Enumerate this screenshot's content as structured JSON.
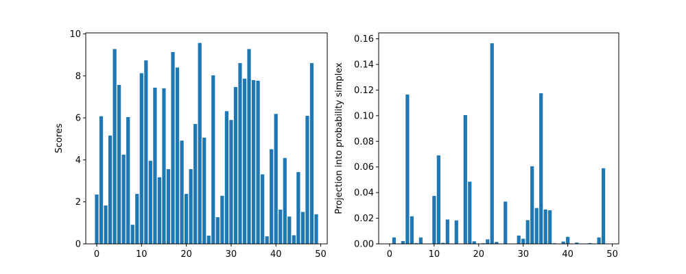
{
  "figure": {
    "background": "#ffffff",
    "bar_color": "#1f77b4"
  },
  "chart_data": [
    {
      "type": "bar",
      "title": "",
      "xlabel": "",
      "ylabel": "Scores",
      "xlim": [
        -2.45,
        51.45
      ],
      "ylim": [
        0,
        10.05
      ],
      "xticks": [
        0,
        10,
        20,
        30,
        40,
        50
      ],
      "xtick_labels": [
        "0",
        "10",
        "20",
        "30",
        "40",
        "50"
      ],
      "yticks": [
        0,
        2,
        4,
        6,
        8,
        10
      ],
      "ytick_labels": [
        "0",
        "2",
        "4",
        "6",
        "8",
        "10"
      ],
      "grid": false,
      "x": [
        0,
        1,
        2,
        3,
        4,
        5,
        6,
        7,
        8,
        9,
        10,
        11,
        12,
        13,
        14,
        15,
        16,
        17,
        18,
        19,
        20,
        21,
        22,
        23,
        24,
        25,
        26,
        27,
        28,
        29,
        30,
        31,
        32,
        33,
        34,
        35,
        36,
        37,
        38,
        39,
        40,
        41,
        42,
        43,
        44,
        45,
        46,
        47,
        48,
        49
      ],
      "values": [
        2.35,
        6.08,
        1.83,
        5.16,
        9.28,
        7.57,
        4.25,
        6.04,
        0.91,
        2.38,
        8.13,
        8.74,
        3.96,
        7.44,
        3.17,
        7.41,
        3.56,
        9.14,
        8.4,
        4.92,
        2.38,
        3.56,
        5.71,
        9.57,
        5.06,
        0.39,
        8.03,
        1.27,
        2.29,
        6.32,
        5.9,
        7.47,
        8.61,
        7.87,
        9.28,
        7.8,
        7.77,
        3.31,
        0.36,
        4.51,
        6.19,
        1.63,
        4.09,
        1.3,
        0.41,
        3.42,
        1.52,
        6.1,
        8.61,
        1.41
      ]
    },
    {
      "type": "bar",
      "title": "",
      "xlabel": "",
      "ylabel": "Projection into probability simplex",
      "xlim": [
        -2.45,
        51.45
      ],
      "ylim": [
        0,
        0.1646
      ],
      "xticks": [
        0,
        10,
        20,
        30,
        40,
        50
      ],
      "xtick_labels": [
        "0",
        "10",
        "20",
        "30",
        "40",
        "50"
      ],
      "yticks": [
        0,
        0.02,
        0.04,
        0.06,
        0.08,
        0.1,
        0.12,
        0.14,
        0.16
      ],
      "ytick_labels": [
        "0.00",
        "0.02",
        "0.04",
        "0.06",
        "0.08",
        "0.10",
        "0.12",
        "0.14",
        "0.16"
      ],
      "grid": false,
      "x": [
        0,
        1,
        2,
        3,
        4,
        5,
        6,
        7,
        8,
        9,
        10,
        11,
        12,
        13,
        14,
        15,
        16,
        17,
        18,
        19,
        20,
        21,
        22,
        23,
        24,
        25,
        26,
        27,
        28,
        29,
        30,
        31,
        32,
        33,
        34,
        35,
        36,
        37,
        38,
        39,
        40,
        41,
        42,
        43,
        44,
        45,
        46,
        47,
        48,
        49
      ],
      "values": [
        0.0,
        0.005,
        0.0,
        0.0022,
        0.1165,
        0.0215,
        0.0006,
        0.005,
        0.0,
        0.0,
        0.0374,
        0.069,
        0.0008,
        0.019,
        0.0,
        0.0183,
        0.0,
        0.1005,
        0.0485,
        0.002,
        0.0,
        0.0005,
        0.0035,
        0.1565,
        0.0015,
        0.0,
        0.033,
        0.0,
        0.0,
        0.0065,
        0.004,
        0.0185,
        0.0605,
        0.028,
        0.1175,
        0.0268,
        0.0262,
        0.0005,
        0.0,
        0.0018,
        0.0055,
        0.0,
        0.001,
        0.0,
        0.0,
        0.0006,
        0.0,
        0.005,
        0.059,
        0.0
      ]
    }
  ]
}
